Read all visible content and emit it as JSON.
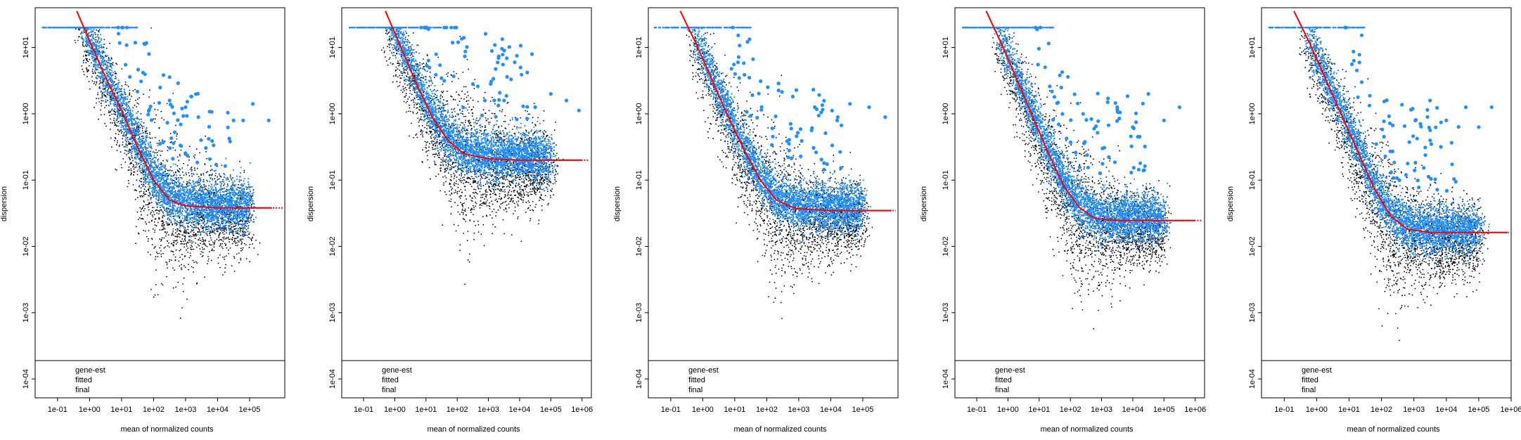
{
  "figure": {
    "xlabel": "mean of normalized counts",
    "ylabel": "dispersion",
    "legend": [
      "gene-est",
      "fitted",
      "final"
    ],
    "colors": {
      "gene_est": "#000000",
      "fitted": "#ff0000",
      "final": "#1e90ff"
    }
  },
  "chart_data": [
    {
      "type": "scatter",
      "xscale": "log10",
      "yscale": "log10",
      "xlabel": "mean of normalized counts",
      "ylabel": "dispersion",
      "xticks": [
        "1e-01",
        "1e+00",
        "1e+01",
        "1e+02",
        "1e+03",
        "1e+04",
        "1e+05"
      ],
      "yticks": [
        "1e-04",
        "1e-03",
        "1e-02",
        "1e-01",
        "1e+00",
        "1e+01"
      ],
      "xlim_log10": [
        -1.7,
        6.1
      ],
      "ylim_log10": [
        -4.2,
        1.6
      ],
      "legend": [
        "gene-est",
        "fitted",
        "final"
      ],
      "legend_position": "bottom-left",
      "series": [
        {
          "name": "fitted",
          "kind": "line",
          "asymptote": 0.038,
          "points": [
            [
              -0.4,
              1.55
            ],
            [
              0.0,
              1.1
            ],
            [
              0.5,
              0.55
            ],
            [
              1.0,
              0.05
            ],
            [
              1.5,
              -0.5
            ],
            [
              2.0,
              -1.0
            ],
            [
              2.5,
              -1.3
            ],
            [
              3.0,
              -1.39
            ],
            [
              4.0,
              -1.42
            ],
            [
              5.7,
              -1.42
            ]
          ]
        },
        {
          "name": "final",
          "kind": "points",
          "cloud_center_log10": [
            2.3,
            -1.45
          ],
          "max_dispersion": 20,
          "outliers": [
            [
              2.5,
              0.2
            ],
            [
              3.0,
              0.1
            ],
            [
              3.4,
              -0.05
            ],
            [
              4.5,
              -0.1
            ],
            [
              4.8,
              -0.1
            ],
            [
              5.1,
              0.15
            ],
            [
              5.6,
              -0.1
            ]
          ]
        },
        {
          "name": "gene-est",
          "kind": "points",
          "cloud_center_log10": [
            2.3,
            -1.6
          ],
          "min_dispersion": 0.0003
        }
      ]
    },
    {
      "type": "scatter",
      "xscale": "log10",
      "yscale": "log10",
      "xlabel": "mean of normalized counts",
      "ylabel": "dispersion",
      "xticks": [
        "1e-01",
        "1e+00",
        "1e+01",
        "1e+02",
        "1e+03",
        "1e+04",
        "1e+05",
        "1e+06"
      ],
      "yticks": [
        "1e-04",
        "1e-03",
        "1e-02",
        "1e-01",
        "1e+00",
        "1e+01"
      ],
      "xlim_log10": [
        -1.7,
        6.3
      ],
      "ylim_log10": [
        -4.2,
        1.6
      ],
      "legend": [
        "gene-est",
        "fitted",
        "final"
      ],
      "legend_position": "bottom-left",
      "series": [
        {
          "name": "fitted",
          "kind": "line",
          "asymptote": 0.2,
          "points": [
            [
              -0.3,
              1.55
            ],
            [
              0.2,
              1.0
            ],
            [
              0.7,
              0.45
            ],
            [
              1.2,
              -0.05
            ],
            [
              1.7,
              -0.4
            ],
            [
              2.2,
              -0.6
            ],
            [
              3.0,
              -0.68
            ],
            [
              4.0,
              -0.7
            ],
            [
              6.0,
              -0.7
            ]
          ]
        },
        {
          "name": "final",
          "kind": "points",
          "cloud_center_log10": [
            1.8,
            -0.55
          ],
          "max_dispersion": 20,
          "outliers": [
            [
              4.5,
              0.1
            ],
            [
              5.0,
              0.3
            ],
            [
              5.5,
              0.2
            ],
            [
              5.9,
              0.05
            ],
            [
              3.5,
              0.2
            ],
            [
              2.5,
              0.45
            ]
          ]
        },
        {
          "name": "gene-est",
          "kind": "points",
          "cloud_center_log10": [
            1.6,
            -0.9
          ],
          "min_dispersion": 0.0005
        }
      ]
    },
    {
      "type": "scatter",
      "xscale": "log10",
      "yscale": "log10",
      "xlabel": "mean of normalized counts",
      "ylabel": "dispersion",
      "xticks": [
        "1e-01",
        "1e+00",
        "1e+01",
        "1e+02",
        "1e+03",
        "1e+04",
        "1e+05"
      ],
      "yticks": [
        "1e-04",
        "1e-03",
        "1e-02",
        "1e-01",
        "1e+00",
        "1e+01"
      ],
      "xlim_log10": [
        -1.7,
        6.1
      ],
      "ylim_log10": [
        -4.2,
        1.6
      ],
      "legend": [
        "gene-est",
        "fitted",
        "final"
      ],
      "legend_position": "bottom-left",
      "series": [
        {
          "name": "fitted",
          "kind": "line",
          "asymptote": 0.035,
          "points": [
            [
              -0.7,
              1.55
            ],
            [
              -0.2,
              1.05
            ],
            [
              0.3,
              0.5
            ],
            [
              0.8,
              -0.05
            ],
            [
              1.3,
              -0.55
            ],
            [
              1.8,
              -1.0
            ],
            [
              2.3,
              -1.3
            ],
            [
              2.9,
              -1.43
            ],
            [
              4.0,
              -1.46
            ],
            [
              5.9,
              -1.46
            ]
          ]
        },
        {
          "name": "final",
          "kind": "points",
          "cloud_center_log10": [
            2.2,
            -1.5
          ],
          "max_dispersion": 20,
          "outliers": [
            [
              3.5,
              0.1
            ],
            [
              4.2,
              -0.1
            ],
            [
              4.6,
              0.15
            ],
            [
              5.2,
              0.1
            ],
            [
              5.7,
              -0.05
            ]
          ]
        },
        {
          "name": "gene-est",
          "kind": "points",
          "cloud_center_log10": [
            2.2,
            -1.8
          ],
          "min_dispersion": 0.0001
        }
      ]
    },
    {
      "type": "scatter",
      "xscale": "log10",
      "yscale": "log10",
      "xlabel": "mean of normalized counts",
      "ylabel": "dispersion",
      "xticks": [
        "1e-01",
        "1e+00",
        "1e+01",
        "1e+02",
        "1e+03",
        "1e+04",
        "1e+05",
        "1e+06"
      ],
      "yticks": [
        "1e-04",
        "1e-03",
        "1e-02",
        "1e-01",
        "1e+00",
        "1e+01"
      ],
      "xlim_log10": [
        -1.7,
        6.3
      ],
      "ylim_log10": [
        -4.2,
        1.6
      ],
      "legend": [
        "gene-est",
        "fitted",
        "final"
      ],
      "legend_position": "bottom-left",
      "series": [
        {
          "name": "fitted",
          "kind": "line",
          "asymptote": 0.024,
          "points": [
            [
              -0.7,
              1.55
            ],
            [
              -0.2,
              1.05
            ],
            [
              0.3,
              0.5
            ],
            [
              0.8,
              -0.05
            ],
            [
              1.3,
              -0.6
            ],
            [
              1.8,
              -1.1
            ],
            [
              2.3,
              -1.42
            ],
            [
              2.8,
              -1.58
            ],
            [
              3.5,
              -1.61
            ],
            [
              6.0,
              -1.61
            ]
          ]
        },
        {
          "name": "final",
          "kind": "points",
          "cloud_center_log10": [
            2.2,
            -1.6
          ],
          "max_dispersion": 20,
          "outliers": [
            [
              3.5,
              0.1
            ],
            [
              4.0,
              -0.2
            ],
            [
              4.5,
              0.3
            ],
            [
              5.0,
              -0.1
            ],
            [
              5.5,
              0.1
            ]
          ]
        },
        {
          "name": "gene-est",
          "kind": "points",
          "cloud_center_log10": [
            2.2,
            -1.9
          ],
          "min_dispersion": 0.0001
        }
      ]
    },
    {
      "type": "scatter",
      "xscale": "log10",
      "yscale": "log10",
      "xlabel": "mean of normalized counts",
      "ylabel": "dispersion",
      "xticks": [
        "1e-01",
        "1e+00",
        "1e+01",
        "1e+02",
        "1e+03",
        "1e+04",
        "1e+05",
        "1e+06"
      ],
      "yticks": [
        "1e-04",
        "1e-03",
        "1e-02",
        "1e-01",
        "1e+00",
        "1e+01"
      ],
      "xlim_log10": [
        -1.7,
        6.0
      ],
      "ylim_log10": [
        -4.2,
        1.6
      ],
      "legend": [
        "gene-est",
        "fitted",
        "final"
      ],
      "legend_position": "bottom-left",
      "series": [
        {
          "name": "fitted",
          "kind": "line",
          "asymptote": 0.016,
          "points": [
            [
              -0.7,
              1.55
            ],
            [
              -0.2,
              1.05
            ],
            [
              0.3,
              0.5
            ],
            [
              0.8,
              -0.05
            ],
            [
              1.3,
              -0.6
            ],
            [
              1.8,
              -1.15
            ],
            [
              2.3,
              -1.55
            ],
            [
              2.8,
              -1.74
            ],
            [
              3.5,
              -1.79
            ],
            [
              5.9,
              -1.79
            ]
          ]
        },
        {
          "name": "final",
          "kind": "points",
          "cloud_center_log10": [
            2.2,
            -1.75
          ],
          "max_dispersion": 20,
          "outliers": [
            [
              3.5,
              0.2
            ],
            [
              4.0,
              -0.1
            ],
            [
              4.6,
              0.1
            ],
            [
              5.0,
              -0.2
            ],
            [
              5.4,
              0.1
            ]
          ]
        },
        {
          "name": "gene-est",
          "kind": "points",
          "cloud_center_log10": [
            2.2,
            -2.1
          ],
          "min_dispersion": 0.0001
        }
      ]
    }
  ]
}
